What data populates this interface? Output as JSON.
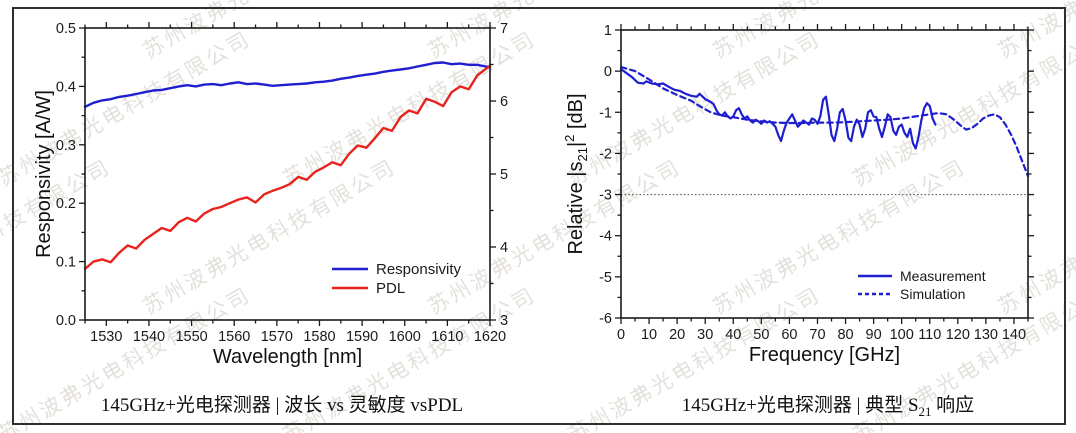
{
  "page": {
    "background": "#ffffff",
    "border_color": "#2e2e2e"
  },
  "watermark": {
    "text": "苏州波弗光电科技有限公司",
    "color": "rgba(201,196,186,0.5)",
    "angle_deg": -30
  },
  "figures": [
    {
      "caption": "145GHz+光电探测器 | 波长 vs 灵敏度 vsPDL"
    },
    {
      "caption_prefix": "145GHz+光电探测器 | 典型 S",
      "caption_sub": "21",
      "caption_suffix": " 响应"
    }
  ],
  "chart_data": [
    {
      "type": "line",
      "title": "",
      "xlabel": "Wavelength [nm]",
      "ylabel": "Responsivity [A/W]",
      "ylabel_parts": [
        {
          "t": "Responsivity  [A/W]"
        }
      ],
      "xlim": [
        1525,
        1620
      ],
      "ylim": [
        0,
        0.5
      ],
      "y2lim": [
        3,
        7
      ],
      "xticks": [
        1530,
        1540,
        1550,
        1560,
        1570,
        1580,
        1590,
        1600,
        1610,
        1620
      ],
      "xminor": 5,
      "yticks": [
        0,
        0.1,
        0.2,
        0.3,
        0.4,
        0.5
      ],
      "ytick_labels": [
        "0.0",
        "0.1",
        "0.2",
        "0.3",
        "0.4",
        "0.5"
      ],
      "yminor": 0.05,
      "y2ticks": [
        3,
        4,
        5,
        6,
        7
      ],
      "y2minor": 0.5,
      "grid": false,
      "legend": {
        "position": "lower-right",
        "entries": [
          "Responsivity",
          "PDL"
        ]
      },
      "series": [
        {
          "name": "Responsivity",
          "color": "#1f1fd0",
          "style": "solid",
          "axis": "y1",
          "x": [
            1525,
            1527,
            1529,
            1531,
            1533,
            1535,
            1537,
            1539,
            1541,
            1543,
            1545,
            1547,
            1549,
            1551,
            1553,
            1555,
            1557,
            1559,
            1561,
            1563,
            1565,
            1567,
            1569,
            1571,
            1573,
            1575,
            1577,
            1579,
            1581,
            1583,
            1585,
            1587,
            1589,
            1591,
            1593,
            1595,
            1597,
            1599,
            1601,
            1603,
            1605,
            1607,
            1609,
            1611,
            1613,
            1615,
            1617,
            1619,
            1620
          ],
          "y": [
            0.365,
            0.372,
            0.376,
            0.378,
            0.382,
            0.384,
            0.387,
            0.39,
            0.393,
            0.394,
            0.397,
            0.4,
            0.402,
            0.4,
            0.403,
            0.404,
            0.402,
            0.405,
            0.407,
            0.404,
            0.405,
            0.403,
            0.401,
            0.402,
            0.403,
            0.404,
            0.405,
            0.407,
            0.408,
            0.41,
            0.413,
            0.415,
            0.418,
            0.42,
            0.422,
            0.425,
            0.427,
            0.429,
            0.431,
            0.434,
            0.437,
            0.44,
            0.441,
            0.438,
            0.439,
            0.437,
            0.437,
            0.434,
            0.433
          ]
        },
        {
          "name": "PDL",
          "color": "#e8231d",
          "style": "solid",
          "axis": "y2",
          "x": [
            1525,
            1527,
            1529,
            1531,
            1533,
            1535,
            1537,
            1539,
            1541,
            1543,
            1545,
            1547,
            1549,
            1551,
            1553,
            1555,
            1557,
            1559,
            1561,
            1563,
            1565,
            1567,
            1569,
            1571,
            1573,
            1575,
            1577,
            1579,
            1581,
            1583,
            1585,
            1587,
            1589,
            1591,
            1593,
            1595,
            1597,
            1599,
            1601,
            1603,
            1605,
            1607,
            1609,
            1611,
            1613,
            1615,
            1617,
            1619,
            1620
          ],
          "y": [
            3.7,
            3.8,
            3.83,
            3.79,
            3.92,
            4.02,
            3.98,
            4.1,
            4.18,
            4.26,
            4.22,
            4.34,
            4.4,
            4.35,
            4.46,
            4.52,
            4.55,
            4.6,
            4.65,
            4.68,
            4.61,
            4.72,
            4.77,
            4.81,
            4.86,
            4.96,
            4.92,
            5.03,
            5.09,
            5.16,
            5.12,
            5.28,
            5.39,
            5.36,
            5.49,
            5.63,
            5.59,
            5.78,
            5.87,
            5.83,
            6.03,
            5.99,
            5.93,
            6.12,
            6.2,
            6.16,
            6.35,
            6.44,
            6.48
          ]
        }
      ]
    },
    {
      "type": "line",
      "title": "",
      "xlabel": "Frequency [GHz]",
      "ylabel": "Relative |s21|^2 [dB]",
      "ylabel_parts": [
        {
          "t": "Relative  |s"
        },
        {
          "t": "21",
          "pos": "sub"
        },
        {
          "t": "|"
        },
        {
          "t": "2",
          "pos": "sup"
        },
        {
          "t": "  [dB]"
        }
      ],
      "xlim": [
        0,
        145
      ],
      "ylim": [
        -6,
        1
      ],
      "xticks": [
        0,
        10,
        20,
        30,
        40,
        50,
        60,
        70,
        80,
        90,
        100,
        110,
        120,
        130,
        140
      ],
      "xminor": 5,
      "yticks": [
        -6,
        -5,
        -4,
        -3,
        -2,
        -1,
        0,
        1
      ],
      "ytick_labels": [
        "-6",
        "-5",
        "-4",
        "-3",
        "-2",
        "-1",
        "0",
        "1"
      ],
      "yminor": 0.5,
      "grid": false,
      "reference_line_y": -3,
      "legend": {
        "position": "lower-right",
        "entries": [
          "Measurement",
          "Simulation"
        ]
      },
      "series": [
        {
          "name": "Measurement",
          "color": "#1f1fd0",
          "style": "solid",
          "axis": "y1",
          "x": [
            0,
            2,
            4,
            6,
            8,
            9,
            11,
            13,
            15,
            17,
            19,
            21,
            23,
            25,
            27,
            28,
            30,
            32,
            33,
            34,
            35,
            36,
            37,
            38,
            39,
            40,
            41,
            42,
            43,
            44,
            45,
            46,
            47,
            48,
            49,
            50,
            51,
            52,
            53,
            54,
            55,
            56,
            57,
            58,
            59,
            60,
            61,
            62,
            63,
            64,
            65,
            66,
            67,
            68,
            69,
            70,
            71,
            72,
            73,
            74,
            75,
            76,
            77,
            78,
            79,
            80,
            81,
            82,
            83,
            84,
            85,
            86,
            87,
            88,
            89,
            90,
            91,
            92,
            93,
            94,
            95,
            96,
            97,
            98,
            99,
            100,
            101,
            102,
            103,
            104,
            105,
            106,
            107,
            108,
            109,
            110,
            111,
            112
          ],
          "y": [
            0.05,
            -0.05,
            -0.15,
            -0.28,
            -0.3,
            -0.25,
            -0.3,
            -0.32,
            -0.3,
            -0.38,
            -0.45,
            -0.48,
            -0.55,
            -0.6,
            -0.62,
            -0.55,
            -0.68,
            -0.75,
            -0.8,
            -0.95,
            -1.05,
            -1.08,
            -1.0,
            -1.1,
            -1.15,
            -1.1,
            -0.95,
            -0.9,
            -1.05,
            -1.15,
            -1.1,
            -1.2,
            -1.25,
            -1.18,
            -1.22,
            -1.28,
            -1.2,
            -1.25,
            -1.22,
            -1.28,
            -1.35,
            -1.55,
            -1.7,
            -1.45,
            -1.25,
            -1.15,
            -1.05,
            -1.2,
            -1.35,
            -1.28,
            -1.2,
            -1.25,
            -1.3,
            -1.15,
            -1.18,
            -1.28,
            -1.1,
            -0.7,
            -0.62,
            -1.05,
            -1.55,
            -1.7,
            -1.4,
            -1.0,
            -0.92,
            -1.2,
            -1.62,
            -1.7,
            -1.35,
            -1.18,
            -1.3,
            -1.6,
            -1.4,
            -1.0,
            -0.95,
            -1.1,
            -1.12,
            -1.4,
            -1.6,
            -1.35,
            -1.05,
            -1.12,
            -1.45,
            -1.55,
            -1.35,
            -1.3,
            -1.5,
            -1.6,
            -1.4,
            -1.75,
            -1.88,
            -1.6,
            -1.2,
            -0.9,
            -0.78,
            -0.85,
            -1.15,
            -1.3
          ]
        },
        {
          "name": "Simulation",
          "color": "#1f1fd0",
          "style": "dashed",
          "axis": "y1",
          "x": [
            0,
            5,
            10,
            15,
            20,
            25,
            28,
            32,
            36,
            40,
            45,
            50,
            55,
            60,
            65,
            70,
            75,
            80,
            85,
            90,
            95,
            100,
            105,
            110,
            113,
            116,
            119,
            121,
            123,
            125,
            127,
            129,
            131,
            133,
            135,
            137,
            139,
            141,
            143,
            145
          ],
          "y": [
            0.1,
            0.0,
            -0.2,
            -0.42,
            -0.58,
            -0.72,
            -0.85,
            -1.0,
            -1.08,
            -1.12,
            -1.18,
            -1.22,
            -1.25,
            -1.26,
            -1.26,
            -1.25,
            -1.25,
            -1.24,
            -1.22,
            -1.2,
            -1.18,
            -1.15,
            -1.1,
            -1.05,
            -1.02,
            -1.05,
            -1.2,
            -1.32,
            -1.42,
            -1.38,
            -1.28,
            -1.15,
            -1.08,
            -1.05,
            -1.12,
            -1.3,
            -1.55,
            -1.85,
            -2.2,
            -2.55
          ]
        }
      ]
    }
  ]
}
